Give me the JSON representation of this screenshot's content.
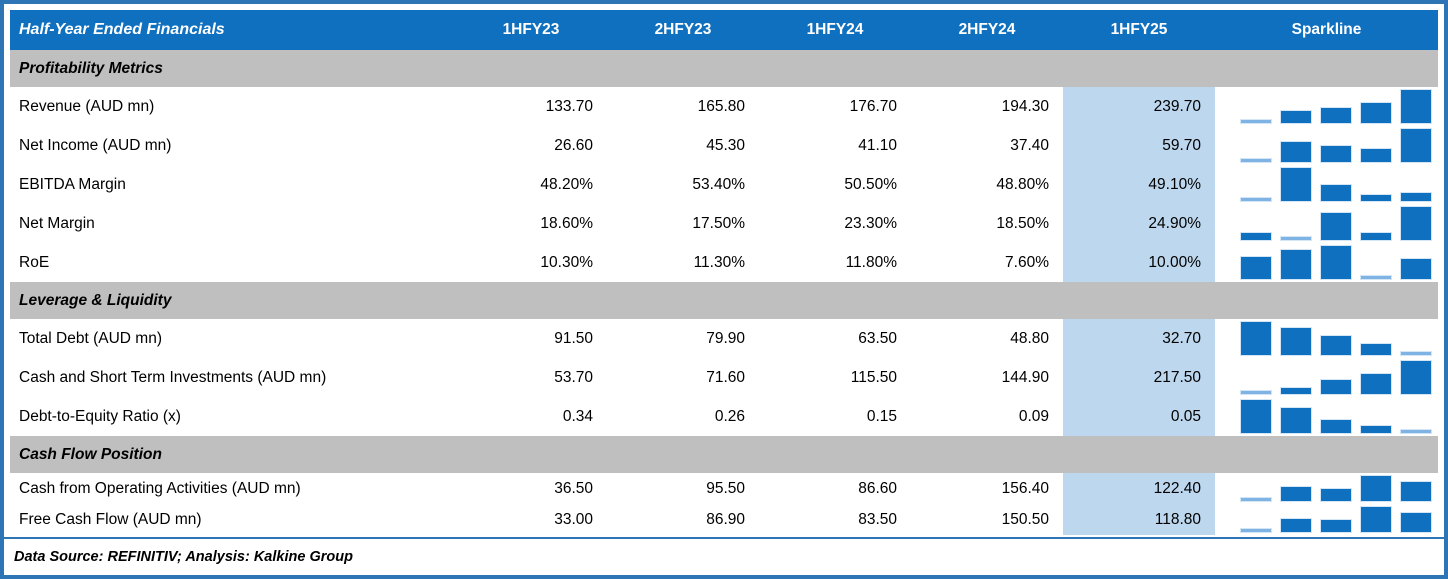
{
  "colors": {
    "header_bg": "#0F70C0",
    "header_text": "#FFFFFF",
    "border": "#2E75B6",
    "section_bg": "#BFBFBF",
    "highlight_bg": "#BDD7EE",
    "sparkline_bar": "#0F70C0",
    "sparkline_min_bar": "#7EB3E3",
    "text": "#000000"
  },
  "table": {
    "title": "Half-Year Ended Financials",
    "columns": [
      "1HFY23",
      "2HFY23",
      "1HFY24",
      "2HFY24",
      "1HFY25"
    ],
    "sparkline_header": "Sparkline",
    "highlighted_column": "1HFY25",
    "footer": "Data Source: REFINITIV; Analysis: Kalkine Group"
  },
  "chart_data": {
    "type": "table",
    "title": "Half-Year Ended Financials",
    "columns": [
      "1HFY23",
      "2HFY23",
      "1HFY24",
      "2HFY24",
      "1HFY25"
    ],
    "sparkline": {
      "type": "bar",
      "note": "per-row mini bar chart of the five half-year values; the row minimum is drawn as a thin light-blue bar"
    },
    "sections": [
      {
        "title": "Profitability Metrics",
        "rows": [
          {
            "label": "Revenue (AUD mn)",
            "format": "number",
            "values": [
              133.7,
              165.8,
              176.7,
              194.3,
              239.7
            ]
          },
          {
            "label": "Net Income (AUD mn)",
            "format": "number",
            "values": [
              26.6,
              45.3,
              41.1,
              37.4,
              59.7
            ]
          },
          {
            "label": "EBITDA Margin",
            "format": "percent",
            "values": [
              48.2,
              53.4,
              50.5,
              48.8,
              49.1
            ]
          },
          {
            "label": "Net Margin",
            "format": "percent",
            "values": [
              18.6,
              17.5,
              23.3,
              18.5,
              24.9
            ]
          },
          {
            "label": "RoE",
            "format": "percent",
            "values": [
              10.3,
              11.3,
              11.8,
              7.6,
              10.0
            ]
          }
        ]
      },
      {
        "title": "Leverage & Liquidity",
        "rows": [
          {
            "label": "Total Debt (AUD mn)",
            "format": "number",
            "values": [
              91.5,
              79.9,
              63.5,
              48.8,
              32.7
            ]
          },
          {
            "label": "Cash and Short Term Investments (AUD mn)",
            "format": "number",
            "values": [
              53.7,
              71.6,
              115.5,
              144.9,
              217.5
            ]
          },
          {
            "label": "Debt-to-Equity Ratio (x)",
            "format": "number",
            "values": [
              0.34,
              0.26,
              0.15,
              0.09,
              0.05
            ]
          }
        ]
      },
      {
        "title": "Cash Flow Position",
        "rows": [
          {
            "label": "Cash from Operating Activities (AUD mn)",
            "format": "number",
            "values": [
              36.5,
              95.5,
              86.6,
              156.4,
              122.4
            ]
          },
          {
            "label": "Free Cash Flow (AUD mn)",
            "format": "number",
            "values": [
              33.0,
              86.9,
              83.5,
              150.5,
              118.8
            ]
          }
        ]
      }
    ]
  }
}
